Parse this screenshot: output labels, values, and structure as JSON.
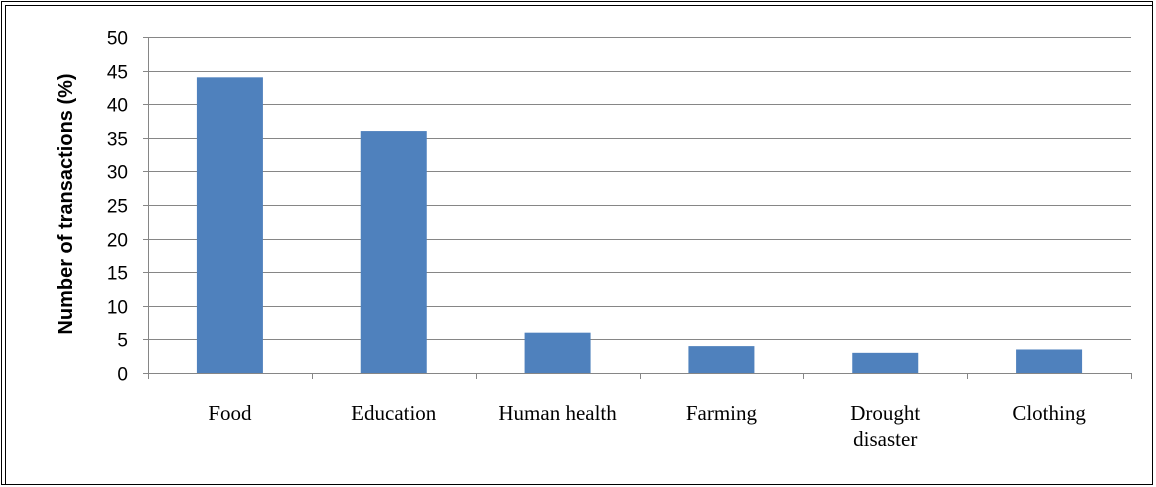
{
  "chart_data": {
    "type": "bar",
    "title": "",
    "xlabel": "",
    "ylabel": "Number of transactions (%)",
    "ylim": [
      0,
      50
    ],
    "yticks": [
      "0",
      "5",
      "10",
      "15",
      "20",
      "25",
      "30",
      "35",
      "40",
      "45",
      "50"
    ],
    "grid": true,
    "categories": [
      [
        "Food"
      ],
      [
        "Education"
      ],
      [
        "Human health"
      ],
      [
        "Farming"
      ],
      [
        "Drought",
        "disaster"
      ],
      [
        "Clothing"
      ]
    ],
    "values": [
      44,
      36,
      6,
      4,
      3,
      3.5
    ],
    "colors": {
      "bar": "#4f81bd",
      "grid": "#868686",
      "axis": "#868686"
    }
  }
}
